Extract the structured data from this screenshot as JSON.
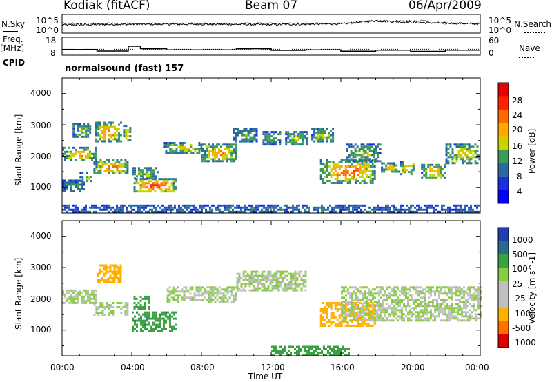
{
  "header": {
    "station": "Kodiak (fitACF)",
    "beam": "Beam 07",
    "date": "06/Apr/2009"
  },
  "left_labels": {
    "nsky": "N.Sky",
    "freq_line1": "Freq.",
    "freq_line2": "[MHz]",
    "cpid": "CPID"
  },
  "right_labels": {
    "nsearch": "N.Search",
    "nave": "Nave"
  },
  "noise_axis": {
    "top": "10^5",
    "bottom": "10^0"
  },
  "freq_axis": {
    "left_top": "18",
    "left_bottom": "8",
    "right_top": "60",
    "right_bottom": "0"
  },
  "program": "normalsound (fast) 157",
  "x_axis": {
    "label": "Time UT",
    "ticks": [
      "00:00",
      "04:00",
      "08:00",
      "12:00",
      "16:00",
      "20:00",
      "00:00"
    ]
  },
  "power_panel": {
    "ylabel": "Slant Range [km]",
    "yticks": [
      "4000",
      "3000",
      "2000",
      "1000"
    ],
    "colorbar_label": "Power [dB]",
    "colorbar_ticks": [
      "28",
      "24",
      "20",
      "16",
      "12",
      "8",
      "4"
    ]
  },
  "velocity_panel": {
    "ylabel": "Slant Range [km]",
    "yticks": [
      "4000",
      "3000",
      "2000",
      "1000"
    ],
    "colorbar_label": "Velocity [m s^-1]",
    "colorbar_ticks": [
      "1000",
      "500",
      "100",
      "25",
      "-25",
      "-100",
      "-500",
      "-1000"
    ]
  },
  "chart_data": {
    "type": "heatmap",
    "title": "Kodiak (fitACF) Beam 07 06/Apr/2009",
    "xlabel": "Time UT",
    "ylabel": "Slant Range [km]",
    "xlim_hours": [
      0,
      24
    ],
    "ylim_km": [
      180,
      4500
    ],
    "panels": [
      {
        "name": "Power",
        "unit": "dB",
        "colorbar": [
          {
            "v": 30,
            "color": "#e60000"
          },
          {
            "v": 28,
            "color": "#ff2000"
          },
          {
            "v": 24,
            "color": "#ff6a00"
          },
          {
            "v": 20,
            "color": "#ffaa00"
          },
          {
            "v": 16,
            "color": "#c8d400"
          },
          {
            "v": 12,
            "color": "#3c9a5a"
          },
          {
            "v": 8,
            "color": "#2a6aa0"
          },
          {
            "v": 4,
            "color": "#1a30e0"
          },
          {
            "v": 0,
            "color": "#0000ff"
          }
        ],
        "regions": [
          {
            "t0": 0.0,
            "t1": 2.0,
            "r0": 1850,
            "r1": 2300,
            "value": 18
          },
          {
            "t0": 0.0,
            "t1": 1.3,
            "r0": 900,
            "r1": 1250,
            "value": 8
          },
          {
            "t0": 0.6,
            "t1": 1.6,
            "r0": 2600,
            "r1": 3050,
            "value": 12
          },
          {
            "t0": 1.0,
            "t1": 1.7,
            "r0": 1200,
            "r1": 1500,
            "value": 12
          },
          {
            "t0": 1.8,
            "t1": 3.8,
            "r0": 1450,
            "r1": 1900,
            "value": 21
          },
          {
            "t0": 1.9,
            "t1": 3.4,
            "r0": 2500,
            "r1": 3100,
            "value": 20
          },
          {
            "t0": 3.5,
            "t1": 3.9,
            "r0": 2500,
            "r1": 3000,
            "value": 16
          },
          {
            "t0": 4.1,
            "t1": 6.5,
            "r0": 850,
            "r1": 1300,
            "value": 25
          },
          {
            "t0": 4.0,
            "t1": 5.5,
            "r0": 1300,
            "r1": 1650,
            "value": 13
          },
          {
            "t0": 5.8,
            "t1": 8.0,
            "r0": 2100,
            "r1": 2450,
            "value": 15
          },
          {
            "t0": 8.0,
            "t1": 10.0,
            "r0": 1850,
            "r1": 2400,
            "value": 19
          },
          {
            "t0": 9.8,
            "t1": 11.2,
            "r0": 2500,
            "r1": 2900,
            "value": 10
          },
          {
            "t0": 11.5,
            "t1": 12.5,
            "r0": 2400,
            "r1": 2800,
            "value": 11
          },
          {
            "t0": 12.8,
            "t1": 14.1,
            "r0": 2350,
            "r1": 2800,
            "value": 12
          },
          {
            "t0": 14.3,
            "t1": 15.6,
            "r0": 2500,
            "r1": 2900,
            "value": 14
          },
          {
            "t0": 14.8,
            "t1": 18.0,
            "r0": 1150,
            "r1": 1900,
            "value": 22
          },
          {
            "t0": 16.3,
            "t1": 18.3,
            "r0": 1850,
            "r1": 2400,
            "value": 12
          },
          {
            "t0": 18.3,
            "t1": 19.3,
            "r0": 1500,
            "r1": 1800,
            "value": 18
          },
          {
            "t0": 19.4,
            "t1": 20.2,
            "r0": 1450,
            "r1": 1850,
            "value": 17
          },
          {
            "t0": 20.6,
            "t1": 22.0,
            "r0": 1300,
            "r1": 1750,
            "value": 18
          },
          {
            "t0": 22.0,
            "t1": 24.0,
            "r0": 1800,
            "r1": 2400,
            "value": 16
          },
          {
            "t0": 0.0,
            "t1": 24.0,
            "r0": 200,
            "r1": 450,
            "value": 6
          }
        ]
      },
      {
        "name": "Velocity",
        "unit": "m s^-1",
        "colorbar": [
          {
            "v": 1000,
            "color": "#1f3fb0"
          },
          {
            "v": 500,
            "color": "#2a6a8a"
          },
          {
            "v": 100,
            "color": "#3aa040"
          },
          {
            "v": 25,
            "color": "#88cc44"
          },
          {
            "v": 0,
            "color": "#c0c0c0"
          },
          {
            "v": -25,
            "color": "#c0c0c0"
          },
          {
            "v": -100,
            "color": "#ffb000"
          },
          {
            "v": -500,
            "color": "#ff7000"
          },
          {
            "v": -1000,
            "color": "#e00000"
          }
        ],
        "regions": [
          {
            "t0": 0.0,
            "t1": 2.0,
            "r0": 1850,
            "r1": 2300,
            "value": 0
          },
          {
            "t0": 1.8,
            "t1": 3.8,
            "r0": 1450,
            "r1": 1900,
            "value": 0
          },
          {
            "t0": 2.0,
            "t1": 3.4,
            "r0": 2550,
            "r1": 3100,
            "value": -300
          },
          {
            "t0": 4.0,
            "t1": 6.5,
            "r0": 1000,
            "r1": 1600,
            "value": 80
          },
          {
            "t0": 4.1,
            "t1": 5.0,
            "r0": 1700,
            "r1": 2100,
            "value": 60
          },
          {
            "t0": 6.0,
            "t1": 10.0,
            "r0": 1900,
            "r1": 2400,
            "value": 0
          },
          {
            "t0": 10.0,
            "t1": 14.0,
            "r0": 2300,
            "r1": 2900,
            "value": 0
          },
          {
            "t0": 14.8,
            "t1": 18.0,
            "r0": 1150,
            "r1": 1900,
            "value": -350
          },
          {
            "t0": 16.0,
            "t1": 24.0,
            "r0": 1300,
            "r1": 2400,
            "value": 0
          },
          {
            "t0": 12.0,
            "t1": 16.5,
            "r0": 200,
            "r1": 500,
            "value": 60
          }
        ]
      }
    ],
    "noise_sky_log10": {
      "x_hours": [
        0,
        4,
        8,
        12,
        16,
        18,
        20,
        24
      ],
      "values": [
        2.2,
        2.4,
        2.4,
        2.3,
        2.5,
        3.3,
        2.9,
        2.5
      ]
    },
    "frequency_mhz": {
      "x_hours": [
        0,
        2,
        3.8,
        4.5,
        6,
        10,
        12,
        14,
        16,
        18,
        20,
        22,
        24
      ],
      "values": [
        11.2,
        10.3,
        13.0,
        11.6,
        11.0,
        11.6,
        10.7,
        11.0,
        10.2,
        10.8,
        10.1,
        10.8,
        11.0
      ]
    }
  }
}
